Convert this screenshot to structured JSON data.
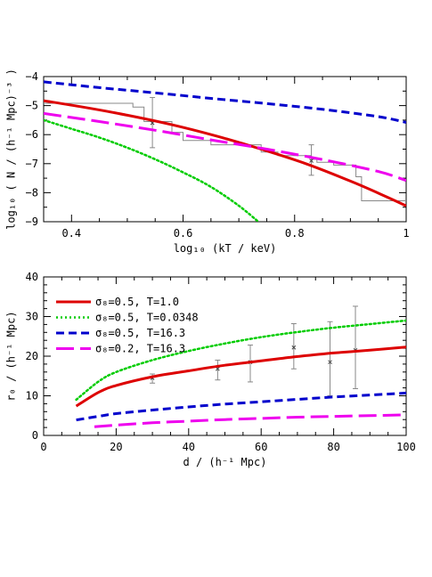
{
  "chart_data": [
    {
      "type": "line",
      "xlabel": "log₁₀ (kT / keV)",
      "ylabel": "log₁₀ ( N / (h⁻¹ Mpc)⁻³ )",
      "xlim": [
        0.35,
        1.0
      ],
      "ylim": [
        -9,
        -4
      ],
      "xticks": [
        "0.4",
        "0.6",
        "0.8",
        "1"
      ],
      "yticks": [
        "−4",
        "−5",
        "−6",
        "−7",
        "−8",
        "−9"
      ],
      "series": [
        {
          "color": "#0000cc",
          "style": "dashed",
          "x": [
            0.35,
            0.45,
            0.55,
            0.65,
            0.75,
            0.85,
            0.95,
            1.0
          ],
          "y": [
            -4.18,
            -4.38,
            -4.56,
            -4.75,
            -4.93,
            -5.13,
            -5.38,
            -5.58
          ]
        },
        {
          "color": "#dd0000",
          "style": "solid",
          "x": [
            0.35,
            0.42,
            0.5,
            0.58,
            0.66,
            0.74,
            0.82,
            0.9,
            0.96,
            1.0
          ],
          "y": [
            -4.83,
            -5.05,
            -5.33,
            -5.66,
            -6.05,
            -6.5,
            -7.0,
            -7.6,
            -8.1,
            -8.45
          ]
        },
        {
          "color": "#ee00ee",
          "style": "longdash",
          "x": [
            0.35,
            0.45,
            0.55,
            0.65,
            0.75,
            0.85,
            0.95,
            1.0
          ],
          "y": [
            -5.27,
            -5.55,
            -5.85,
            -6.18,
            -6.5,
            -6.86,
            -7.27,
            -7.58
          ]
        },
        {
          "color": "#00cc00",
          "style": "dotted",
          "x": [
            0.35,
            0.4,
            0.45,
            0.5,
            0.55,
            0.6,
            0.65,
            0.7,
            0.735
          ],
          "y": [
            -5.5,
            -5.8,
            -6.1,
            -6.45,
            -6.85,
            -7.3,
            -7.8,
            -8.45,
            -9.0
          ]
        }
      ],
      "histogram": {
        "color": "#888888",
        "x": [
          0.35,
          0.51,
          0.51,
          0.53,
          0.53,
          0.58,
          0.58,
          0.6,
          0.6,
          0.65,
          0.65,
          0.74,
          0.74,
          0.77,
          0.77,
          0.83,
          0.83,
          0.84,
          0.84,
          0.87,
          0.87,
          0.91,
          0.91,
          0.92,
          0.92,
          1.0
        ],
        "y": [
          -4.92,
          -4.92,
          -5.05,
          -5.05,
          -5.55,
          -5.55,
          -5.92,
          -5.92,
          -6.2,
          -6.2,
          -6.35,
          -6.35,
          -6.6,
          -6.6,
          -6.72,
          -6.72,
          -6.85,
          -6.85,
          -6.95,
          -6.95,
          -7.05,
          -7.05,
          -7.45,
          -7.45,
          -8.28,
          -8.28
        ]
      },
      "errorbars": {
        "color": "#888888",
        "points": [
          {
            "x": 0.545,
            "y": -5.6,
            "ylo": -6.45,
            "yhi": -4.72
          },
          {
            "x": 0.83,
            "y": -6.9,
            "ylo": -7.4,
            "yhi": -6.35
          }
        ]
      }
    },
    {
      "type": "line",
      "xlabel": "d / (h⁻¹ Mpc)",
      "ylabel": "r₀ / (h⁻¹ Mpc)",
      "xlim": [
        0,
        100
      ],
      "ylim": [
        0,
        40
      ],
      "xticks": [
        "0",
        "20",
        "40",
        "60",
        "80",
        "100"
      ],
      "yticks": [
        "0",
        "10",
        "20",
        "30",
        "40"
      ],
      "legend_position": "top-left",
      "series": [
        {
          "name": "σ₈=0.5, T=1.0",
          "color": "#dd0000",
          "style": "solid",
          "x": [
            9,
            15,
            20,
            30,
            40,
            50,
            60,
            70,
            80,
            90,
            100
          ],
          "y": [
            7.4,
            10.8,
            12.6,
            14.8,
            16.3,
            17.7,
            18.8,
            19.9,
            20.8,
            21.5,
            22.3
          ]
        },
        {
          "name": "σ₈=0.5, T=0.0348",
          "color": "#00cc00",
          "style": "dotted",
          "x": [
            9,
            15,
            20,
            30,
            40,
            50,
            60,
            70,
            80,
            90,
            100
          ],
          "y": [
            9.0,
            13.5,
            16.0,
            19.0,
            21.3,
            23.2,
            24.8,
            26.1,
            27.2,
            28.1,
            29.0
          ]
        },
        {
          "name": "σ₈=0.5, T=16.3",
          "color": "#0000cc",
          "style": "dashed",
          "x": [
            9,
            15,
            20,
            30,
            40,
            50,
            60,
            70,
            80,
            90,
            100
          ],
          "y": [
            3.9,
            4.8,
            5.5,
            6.4,
            7.2,
            7.9,
            8.5,
            9.1,
            9.7,
            10.2,
            10.7
          ]
        },
        {
          "name": "σ₈=0.2, T=16.3",
          "color": "#ee00ee",
          "style": "longdash",
          "x": [
            14,
            20,
            30,
            40,
            50,
            60,
            70,
            80,
            90,
            100
          ],
          "y": [
            2.2,
            2.6,
            3.2,
            3.6,
            4.0,
            4.3,
            4.6,
            4.8,
            5.0,
            5.2
          ]
        }
      ],
      "errorbars": {
        "color": "#888888",
        "points": [
          {
            "x": 30,
            "y": 14.5,
            "ylo": 13.2,
            "yhi": 15.5
          },
          {
            "x": 48,
            "y": 16.8,
            "ylo": 14.0,
            "yhi": 19.0
          },
          {
            "x": 57,
            "y": 18.5,
            "ylo": 13.5,
            "yhi": 22.8
          },
          {
            "x": 69,
            "y": 22.2,
            "ylo": 16.8,
            "yhi": 28.2
          },
          {
            "x": 79,
            "y": 18.5,
            "ylo": 10.0,
            "yhi": 28.7
          },
          {
            "x": 86,
            "y": 21.5,
            "ylo": 11.8,
            "yhi": 32.6
          }
        ]
      }
    }
  ]
}
